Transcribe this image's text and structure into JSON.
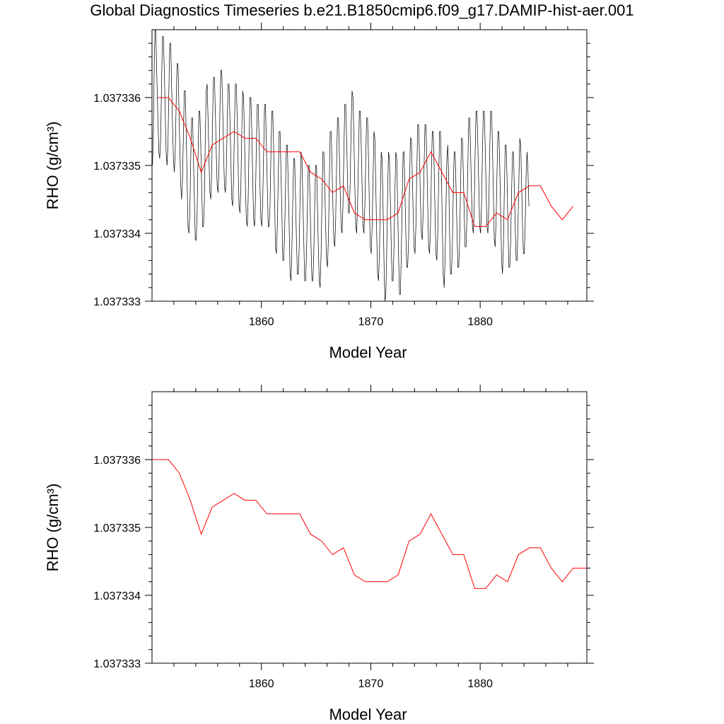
{
  "title": "Global Diagnostics Timeseries b.e21.B1850cmip6.f09_g17.DAMIP-hist-aer.001",
  "colors": {
    "monthly": "#000000",
    "annual": "#ff0000",
    "frame": "#000000"
  },
  "chart_data": [
    {
      "type": "line",
      "xlabel": "Model Year",
      "ylabel": "RHO (g/cm³)",
      "xlim": [
        1850.0,
        1889.75
      ],
      "ylim": [
        1.037333,
        1.037337
      ],
      "x_ticks": [
        1860,
        1870,
        1880
      ],
      "x_tick_labels": [
        "1860",
        "1870",
        "1880"
      ],
      "y_ticks": [
        1.037333,
        1.037334,
        1.037335,
        1.037336
      ],
      "y_tick_labels": [
        "1.037333",
        "1.037334",
        "1.037335",
        "1.037336"
      ],
      "grid": false,
      "series": [
        {
          "role": "monthly",
          "color": "#000000",
          "x_start": 1850.04,
          "x_step": 0.08333,
          "values": [
            1.037335,
            1.0373355,
            1.0373365,
            1.0373371,
            1.0373368,
            1.0373362,
            1.0373357,
            1.0373352,
            1.0373351,
            1.0373354,
            1.0373362,
            1.0373369,
            1.0373369,
            1.0373364,
            1.0373358,
            1.0373352,
            1.037335,
            1.0373353,
            1.0373361,
            1.0373368,
            1.0373368,
            1.0373362,
            1.0373356,
            1.0373351,
            1.0373349,
            1.0373352,
            1.0373359,
            1.0373365,
            1.0373365,
            1.0373359,
            1.0373353,
            1.0373347,
            1.0373345,
            1.0373348,
            1.0373355,
            1.0373361,
            1.0373361,
            1.0373355,
            1.0373348,
            1.0373341,
            1.037334,
            1.0373343,
            1.0373351,
            1.0373357,
            1.0373357,
            1.0373351,
            1.0373345,
            1.0373339,
            1.0373339,
            1.0373343,
            1.0373351,
            1.0373358,
            1.0373358,
            1.0373353,
            1.0373347,
            1.0373341,
            1.0373341,
            1.0373345,
            1.0373354,
            1.0373361,
            1.0373362,
            1.0373357,
            1.0373351,
            1.0373346,
            1.0373345,
            1.0373349,
            1.0373357,
            1.0373363,
            1.0373363,
            1.0373358,
            1.0373352,
            1.0373347,
            1.0373346,
            1.037335,
            1.0373358,
            1.0373364,
            1.0373364,
            1.0373359,
            1.0373352,
            1.0373347,
            1.0373346,
            1.0373349,
            1.0373356,
            1.0373362,
            1.0373362,
            1.0373357,
            1.0373351,
            1.0373345,
            1.0373344,
            1.0373348,
            1.0373356,
            1.0373362,
            1.0373362,
            1.0373357,
            1.037335,
            1.0373344,
            1.0373343,
            1.0373347,
            1.0373355,
            1.0373361,
            1.037336,
            1.0373354,
            1.0373347,
            1.0373342,
            1.0373341,
            1.0373345,
            1.0373353,
            1.037336,
            1.037336,
            1.0373355,
            1.0373348,
            1.0373342,
            1.0373341,
            1.0373345,
            1.0373353,
            1.0373359,
            1.0373359,
            1.0373354,
            1.0373347,
            1.0373342,
            1.0373341,
            1.0373345,
            1.0373352,
            1.0373359,
            1.0373359,
            1.0373353,
            1.0373347,
            1.0373341,
            1.0373341,
            1.0373344,
            1.0373352,
            1.0373358,
            1.0373358,
            1.0373352,
            1.0373345,
            1.0373338,
            1.0373337,
            1.0373341,
            1.0373348,
            1.0373355,
            1.0373355,
            1.0373349,
            1.0373343,
            1.0373336,
            1.0373336,
            1.037334,
            1.0373347,
            1.0373353,
            1.0373353,
            1.0373347,
            1.0373341,
            1.0373334,
            1.0373333,
            1.0373338,
            1.0373345,
            1.0373351,
            1.0373351,
            1.0373345,
            1.0373339,
            1.0373334,
            1.0373334,
            1.0373338,
            1.0373346,
            1.0373352,
            1.0373351,
            1.0373345,
            1.0373339,
            1.0373333,
            1.0373333,
            1.0373337,
            1.0373344,
            1.037335,
            1.037335,
            1.0373344,
            1.0373338,
            1.0373333,
            1.0373333,
            1.0373337,
            1.0373344,
            1.037335,
            1.037335,
            1.0373344,
            1.0373338,
            1.0373333,
            1.0373332,
            1.0373337,
            1.0373345,
            1.0373352,
            1.0373352,
            1.0373347,
            1.0373341,
            1.0373336,
            1.0373335,
            1.0373339,
            1.0373347,
            1.0373355,
            1.0373355,
            1.037335,
            1.0373344,
            1.0373339,
            1.0373338,
            1.0373342,
            1.037335,
            1.0373357,
            1.0373357,
            1.0373352,
            1.0373346,
            1.0373341,
            1.037334,
            1.0373344,
            1.0373352,
            1.0373359,
            1.0373359,
            1.0373354,
            1.0373348,
            1.0373343,
            1.0373343,
            1.0373348,
            1.0373356,
            1.0373361,
            1.037336,
            1.0373354,
            1.0373347,
            1.0373341,
            1.037334,
            1.0373344,
            1.0373351,
            1.0373358,
            1.0373358,
            1.0373353,
            1.0373347,
            1.0373341,
            1.037334,
            1.0373344,
            1.0373351,
            1.0373357,
            1.0373357,
            1.0373351,
            1.0373344,
            1.0373338,
            1.0373337,
            1.0373341,
            1.0373348,
            1.0373355,
            1.0373354,
            1.0373347,
            1.037334,
            1.0373334,
            1.0373333,
            1.0373337,
            1.0373345,
            1.0373352,
            1.0373351,
            1.0373344,
            1.0373336,
            1.037333,
            1.0373331,
            1.0373337,
            1.0373346,
            1.0373352,
            1.0373351,
            1.0373345,
            1.0373338,
            1.0373333,
            1.0373333,
            1.0373338,
            1.0373346,
            1.0373352,
            1.0373351,
            1.0373344,
            1.0373337,
            1.0373331,
            1.0373331,
            1.0373337,
            1.0373345,
            1.0373352,
            1.0373352,
            1.0373346,
            1.037334,
            1.0373335,
            1.0373335,
            1.0373339,
            1.0373347,
            1.0373354,
            1.0373354,
            1.0373349,
            1.0373343,
            1.0373338,
            1.0373337,
            1.0373341,
            1.0373349,
            1.0373356,
            1.0373356,
            1.0373351,
            1.0373345,
            1.037334,
            1.0373339,
            1.0373343,
            1.037335,
            1.0373356,
            1.0373356,
            1.0373351,
            1.0373344,
            1.0373338,
            1.0373337,
            1.0373341,
            1.0373349,
            1.0373355,
            1.0373355,
            1.037335,
            1.0373343,
            1.0373337,
            1.0373336,
            1.037334,
            1.0373348,
            1.0373355,
            1.0373355,
            1.0373349,
            1.0373341,
            1.0373334,
            1.0373332,
            1.0373336,
            1.0373344,
            1.0373351,
            1.0373353,
            1.0373348,
            1.037334,
            1.0373334,
            1.0373334,
            1.0373338,
            1.0373346,
            1.0373352,
            1.0373352,
            1.0373347,
            1.0373341,
            1.0373335,
            1.0373335,
            1.0373339,
            1.0373347,
            1.0373354,
            1.0373354,
            1.0373349,
            1.0373343,
            1.0373338,
            1.0373338,
            1.0373342,
            1.037335,
            1.0373357,
            1.0373357,
            1.0373352,
            1.0373346,
            1.0373341,
            1.037334,
            1.0373344,
            1.0373352,
            1.0373358,
            1.0373358,
            1.0373353,
            1.0373347,
            1.0373341,
            1.037334,
            1.0373344,
            1.0373352,
            1.0373358,
            1.0373358,
            1.0373353,
            1.0373347,
            1.0373341,
            1.037334,
            1.0373344,
            1.0373352,
            1.0373358,
            1.0373358,
            1.0373353,
            1.0373346,
            1.0373339,
            1.0373338,
            1.0373342,
            1.0373349,
            1.0373355,
            1.0373355,
            1.037335,
            1.0373343,
            1.0373336,
            1.0373334,
            1.0373338,
            1.0373346,
            1.0373353,
            1.0373353,
            1.0373348,
            1.0373341,
            1.0373335,
            1.0373335,
            1.0373339,
            1.0373346,
            1.0373352,
            1.0373352,
            1.0373347,
            1.0373341,
            1.0373336,
            1.0373336,
            1.0373341,
            1.0373348,
            1.0373354,
            1.0373353,
            1.0373347,
            1.0373341,
            1.0373337,
            1.0373337,
            1.0373342,
            1.0373349,
            1.0373352,
            1.0373349,
            1.0373344
          ]
        },
        {
          "role": "annual",
          "color": "#ff0000",
          "x": [
            1850.5,
            1851.5,
            1852.5,
            1853.5,
            1854.5,
            1855.5,
            1856.5,
            1857.5,
            1858.5,
            1859.5,
            1860.5,
            1861.5,
            1862.5,
            1863.5,
            1864.5,
            1865.5,
            1866.5,
            1867.5,
            1868.5,
            1869.5,
            1870.5,
            1871.5,
            1872.5,
            1873.5,
            1874.5,
            1875.5,
            1876.5,
            1877.5,
            1878.5,
            1879.5,
            1880.5,
            1881.5,
            1882.5,
            1883.5,
            1884.5,
            1885.5,
            1886.5,
            1887.5,
            1888.5
          ],
          "values": [
            1.037336,
            1.037336,
            1.0373358,
            1.0373354,
            1.0373349,
            1.0373353,
            1.0373354,
            1.0373355,
            1.0373354,
            1.0373354,
            1.0373352,
            1.0373352,
            1.0373352,
            1.0373352,
            1.0373349,
            1.0373348,
            1.0373346,
            1.0373347,
            1.0373343,
            1.0373342,
            1.0373342,
            1.0373342,
            1.0373343,
            1.0373348,
            1.0373349,
            1.0373352,
            1.0373349,
            1.0373346,
            1.0373346,
            1.0373341,
            1.0373341,
            1.0373343,
            1.0373342,
            1.0373346,
            1.0373347,
            1.0373347,
            1.0373344,
            1.0373342,
            1.0373344
          ]
        }
      ]
    },
    {
      "type": "line",
      "xlabel": "Model Year",
      "ylabel": "RHO (g/cm³)",
      "xlim": [
        1850.0,
        1889.75
      ],
      "ylim": [
        1.037333,
        1.037337
      ],
      "x_ticks": [
        1860,
        1870,
        1880
      ],
      "x_tick_labels": [
        "1860",
        "1870",
        "1880"
      ],
      "y_ticks": [
        1.037333,
        1.037334,
        1.037335,
        1.037336
      ],
      "y_tick_labels": [
        "1.037333",
        "1.037334",
        "1.037335",
        "1.037336"
      ],
      "grid": false,
      "series": [
        {
          "role": "annual",
          "color": "#ff0000",
          "x": [
            1850.0,
            1851.5,
            1852.5,
            1853.5,
            1854.5,
            1855.5,
            1856.5,
            1857.5,
            1858.5,
            1859.5,
            1860.5,
            1861.5,
            1862.5,
            1863.5,
            1864.5,
            1865.5,
            1866.5,
            1867.5,
            1868.5,
            1869.5,
            1870.5,
            1871.5,
            1872.5,
            1873.5,
            1874.5,
            1875.5,
            1876.5,
            1877.5,
            1878.5,
            1879.5,
            1880.5,
            1881.5,
            1882.5,
            1883.5,
            1884.5,
            1885.5,
            1886.5,
            1887.5,
            1888.5,
            1889.75
          ],
          "values": [
            1.037336,
            1.037336,
            1.0373358,
            1.0373354,
            1.0373349,
            1.0373353,
            1.0373354,
            1.0373355,
            1.0373354,
            1.0373354,
            1.0373352,
            1.0373352,
            1.0373352,
            1.0373352,
            1.0373349,
            1.0373348,
            1.0373346,
            1.0373347,
            1.0373343,
            1.0373342,
            1.0373342,
            1.0373342,
            1.0373343,
            1.0373348,
            1.0373349,
            1.0373352,
            1.0373349,
            1.0373346,
            1.0373346,
            1.0373341,
            1.0373341,
            1.0373343,
            1.0373342,
            1.0373346,
            1.0373347,
            1.0373347,
            1.0373344,
            1.0373342,
            1.0373344,
            1.0373344
          ]
        }
      ]
    }
  ]
}
